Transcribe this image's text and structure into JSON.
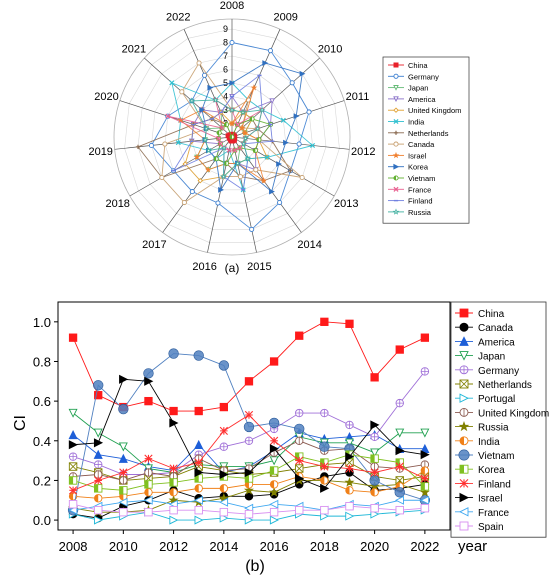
{
  "chart_data": [
    {
      "type": "radar",
      "panel_label": "(a)",
      "axes": [
        "2008",
        "2009",
        "2010",
        "2011",
        "2012",
        "2013",
        "2014",
        "2015",
        "2016",
        "2017",
        "2018",
        "2019",
        "2020",
        "2021",
        "2022"
      ],
      "r_ticks": [
        "2",
        "3",
        "4",
        "5",
        "6",
        "7",
        "8",
        "9"
      ],
      "r_range": [
        1,
        9
      ],
      "legend_position": "right",
      "series": [
        {
          "name": "China",
          "color": "#e8202a",
          "marker": "square",
          "values": [
            1.2,
            1.2,
            1.1,
            1.2,
            1.2,
            1.2,
            1.3,
            1.3,
            1.3,
            1.2,
            1.2,
            1.2,
            1.3,
            1.2,
            1.2
          ]
        },
        {
          "name": "Germany",
          "color": "#3c7fd1",
          "marker": "circle-open",
          "values": [
            8,
            8,
            7,
            7,
            6,
            6,
            7,
            8,
            6,
            6,
            6,
            7,
            6,
            5,
            6
          ]
        },
        {
          "name": "Japan",
          "color": "#66bb77",
          "marker": "tri-down-open",
          "values": [
            3,
            3,
            3,
            2,
            2,
            2,
            2,
            3,
            3,
            4,
            4,
            3,
            3,
            2,
            3
          ]
        },
        {
          "name": "America",
          "color": "#8870c8",
          "marker": "tri-down-open",
          "values": [
            4,
            3,
            5,
            4,
            3,
            3,
            4,
            3,
            3,
            3,
            2,
            4,
            4,
            4,
            3
          ]
        },
        {
          "name": "United Kingdom",
          "color": "#e0a030",
          "marker": "diamond-open",
          "values": [
            2,
            3,
            3,
            2,
            3,
            4,
            3,
            3,
            4,
            5,
            5,
            4,
            4,
            3,
            3
          ]
        },
        {
          "name": "India",
          "color": "#30c0d0",
          "marker": "x",
          "values": [
            5,
            4,
            4,
            5,
            7,
            4,
            3,
            5,
            2,
            3,
            3,
            5,
            5,
            7,
            4
          ]
        },
        {
          "name": "Netherlands",
          "color": "#8a6a50",
          "marker": "plus",
          "values": [
            2,
            2,
            3,
            3,
            4,
            6,
            5,
            4,
            3,
            3,
            7,
            8,
            4,
            3,
            2
          ]
        },
        {
          "name": "Canada",
          "color": "#c8a070",
          "marker": "circle-open",
          "values": [
            3,
            4,
            2,
            3,
            3,
            7,
            4,
            4,
            4,
            7,
            7,
            6,
            3,
            6,
            7
          ]
        },
        {
          "name": "Israel",
          "color": "#f08030",
          "marker": "star",
          "values": [
            2,
            5,
            2,
            2,
            3,
            3,
            5,
            3,
            3,
            4,
            4,
            3,
            5,
            4,
            2
          ]
        },
        {
          "name": "Korea",
          "color": "#3070c0",
          "marker": "tri-right",
          "values": [
            5,
            7,
            8,
            6,
            5,
            5,
            6,
            3,
            5,
            3,
            3,
            3,
            3,
            4,
            5
          ]
        },
        {
          "name": "Vietnam",
          "color": "#60b030",
          "marker": "circle-half",
          "values": [
            1,
            2,
            3,
            4,
            3,
            3,
            2,
            2,
            3,
            3,
            2,
            2,
            2,
            2,
            2
          ]
        },
        {
          "name": "France",
          "color": "#e86090",
          "marker": "x",
          "values": [
            3,
            2,
            4,
            3,
            2,
            2,
            2,
            2,
            2,
            2,
            2,
            2,
            6,
            2,
            4
          ]
        },
        {
          "name": "Finland",
          "color": "#7080e0",
          "marker": "line",
          "values": [
            4,
            6,
            4,
            4,
            4,
            2,
            3,
            5,
            4,
            2,
            6,
            4,
            4,
            3,
            3
          ]
        },
        {
          "name": "Russia",
          "color": "#40b0a0",
          "marker": "star-open",
          "values": [
            3,
            3,
            4,
            3,
            2,
            2,
            3,
            3,
            4,
            2,
            3,
            3,
            3,
            5,
            4
          ]
        }
      ]
    },
    {
      "type": "line",
      "panel_label": "(b)",
      "ylabel": "CI",
      "xlabel": "year",
      "x": [
        2008,
        2009,
        2010,
        2011,
        2012,
        2013,
        2014,
        2015,
        2016,
        2017,
        2018,
        2019,
        2020,
        2021,
        2022
      ],
      "x_ticks": [
        "2008",
        "2010",
        "2012",
        "2014",
        "2016",
        "2018",
        "2020",
        "2022"
      ],
      "y_ticks": [
        "0.0",
        "0.2",
        "0.4",
        "0.6",
        "0.8",
        "1.0"
      ],
      "xlim": [
        2007.4,
        2023
      ],
      "ylim": [
        -0.05,
        1.1
      ],
      "legend_position": "right",
      "series": [
        {
          "name": "China",
          "color": "#ff1a1a",
          "marker": "square",
          "values": [
            0.92,
            0.63,
            0.57,
            0.6,
            0.55,
            0.55,
            0.57,
            0.7,
            0.8,
            0.93,
            1.0,
            0.99,
            0.72,
            0.86,
            0.92
          ]
        },
        {
          "name": "Canada",
          "color": "#000000",
          "marker": "circle",
          "values": [
            0.03,
            0.01,
            0.07,
            0.1,
            0.15,
            0.11,
            0.12,
            0.12,
            0.13,
            0.18,
            0.22,
            0.24,
            0.15,
            0.16,
            0.18
          ]
        },
        {
          "name": "America",
          "color": "#1e5fd8",
          "marker": "triangle-up",
          "values": [
            0.43,
            0.33,
            0.31,
            0.27,
            0.25,
            0.38,
            0.24,
            0.27,
            0.35,
            0.44,
            0.41,
            0.42,
            0.43,
            0.36,
            0.36
          ]
        },
        {
          "name": "Japan",
          "color": "#20a050",
          "marker": "triangle-down-open",
          "values": [
            0.54,
            0.44,
            0.37,
            0.26,
            0.24,
            0.28,
            0.27,
            0.27,
            0.3,
            0.42,
            0.39,
            0.39,
            0.34,
            0.44,
            0.44
          ]
        },
        {
          "name": "Germany",
          "color": "#a070d8",
          "marker": "circle-plus-open",
          "values": [
            0.32,
            0.28,
            0.23,
            0.23,
            0.24,
            0.33,
            0.37,
            0.4,
            0.46,
            0.54,
            0.54,
            0.48,
            0.42,
            0.59,
            0.75
          ]
        },
        {
          "name": "Netherlands",
          "color": "#808000",
          "marker": "x-square-open",
          "values": [
            0.27,
            0.24,
            0.2,
            0.21,
            0.22,
            0.27,
            0.25,
            0.23,
            0.24,
            0.26,
            0.28,
            0.29,
            0.22,
            0.2,
            0.22
          ]
        },
        {
          "name": "Portugal",
          "color": "#20b8d8",
          "marker": "triangle-right-open",
          "values": [
            0.03,
            0.0,
            0.02,
            0.04,
            0.0,
            0.0,
            0.01,
            0.0,
            0.0,
            0.03,
            0.02,
            0.02,
            0.03,
            0.04,
            0.05
          ]
        },
        {
          "name": "United Kingdom",
          "color": "#8b5a50",
          "marker": "circle-bar-open",
          "values": [
            0.22,
            0.23,
            0.2,
            0.24,
            0.22,
            0.31,
            0.25,
            0.26,
            0.34,
            0.4,
            0.35,
            0.36,
            0.27,
            0.26,
            0.28
          ]
        },
        {
          "name": "Russia",
          "color": "#808000",
          "marker": "star",
          "values": [
            0.06,
            0.04,
            0.04,
            0.05,
            0.1,
            0.09,
            0.11,
            0.15,
            0.14,
            0.2,
            0.2,
            0.19,
            0.17,
            0.18,
            0.14
          ]
        },
        {
          "name": "India",
          "color": "#f08018",
          "marker": "circle-half",
          "values": [
            0.12,
            0.11,
            0.12,
            0.14,
            0.14,
            0.16,
            0.16,
            0.18,
            0.18,
            0.22,
            0.2,
            0.15,
            0.14,
            0.17,
            0.25
          ]
        },
        {
          "name": "Vietnam",
          "color": "#5080c0",
          "marker": "circle-big",
          "values": [
            0.05,
            0.68,
            0.56,
            0.74,
            0.84,
            0.83,
            0.78,
            0.47,
            0.49,
            0.46,
            0.37,
            0.36,
            0.2,
            0.14,
            0.1
          ]
        },
        {
          "name": "Korea",
          "color": "#80c020",
          "marker": "square-half",
          "values": [
            0.2,
            0.16,
            0.15,
            0.18,
            0.19,
            0.21,
            0.22,
            0.21,
            0.25,
            0.32,
            0.29,
            0.33,
            0.31,
            0.29,
            0.17
          ]
        },
        {
          "name": "Finland",
          "color": "#ff3030",
          "marker": "star-x",
          "values": [
            0.15,
            0.2,
            0.24,
            0.31,
            0.26,
            0.29,
            0.45,
            0.53,
            0.4,
            0.3,
            0.27,
            0.26,
            0.24,
            0.27,
            0.21
          ]
        },
        {
          "name": "Israel",
          "color": "#000000",
          "marker": "triangle-right",
          "values": [
            0.38,
            0.39,
            0.71,
            0.7,
            0.49,
            0.24,
            0.23,
            0.24,
            0.36,
            0.21,
            0.16,
            0.32,
            0.48,
            0.35,
            0.33
          ]
        },
        {
          "name": "France",
          "color": "#40a8f0",
          "marker": "triangle-left-open",
          "values": [
            0.05,
            0.07,
            0.09,
            0.1,
            0.08,
            0.1,
            0.09,
            0.06,
            0.08,
            0.07,
            0.05,
            0.08,
            0.07,
            0.1,
            0.1
          ]
        },
        {
          "name": "Spain",
          "color": "#d890f0",
          "marker": "square-open",
          "values": [
            0.08,
            0.05,
            0.04,
            0.04,
            0.05,
            0.05,
            0.04,
            0.03,
            0.04,
            0.05,
            0.05,
            0.07,
            0.06,
            0.05,
            0.06
          ]
        }
      ]
    }
  ]
}
